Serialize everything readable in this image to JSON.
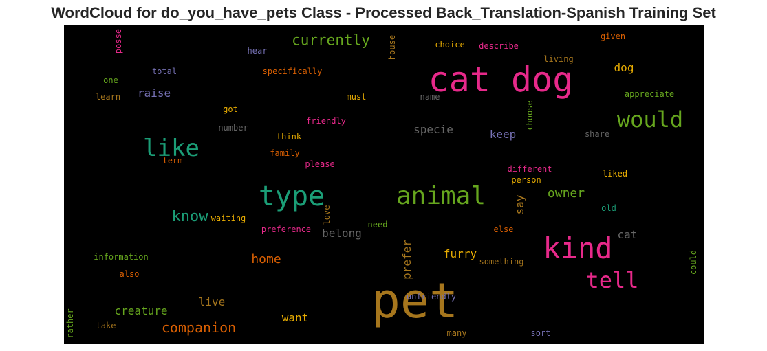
{
  "title": "WordCloud for do_you_have_pets Class - Processed Back_Translation-Spanish Training Set",
  "chart_data": {
    "type": "wordcloud",
    "background": "#000000",
    "colormap": "Dark2",
    "words": [
      {
        "text": "pet",
        "color": "#a6761d"
      },
      {
        "text": "cat dog",
        "color": "#e7298a"
      },
      {
        "text": "kind",
        "color": "#e7298a"
      },
      {
        "text": "animal",
        "color": "#66a61e"
      },
      {
        "text": "type",
        "color": "#1b9e77"
      },
      {
        "text": "would",
        "color": "#66a61e"
      },
      {
        "text": "like",
        "color": "#1b9e77"
      },
      {
        "text": "tell",
        "color": "#e7298a"
      },
      {
        "text": "currently",
        "color": "#66a61e"
      },
      {
        "text": "companion",
        "color": "#d95f02"
      },
      {
        "text": "know",
        "color": "#1b9e77"
      },
      {
        "text": "owner",
        "color": "#66a61e"
      },
      {
        "text": "home",
        "color": "#d95f02"
      },
      {
        "text": "creature",
        "color": "#66a61e"
      },
      {
        "text": "want",
        "color": "#e6ab02"
      },
      {
        "text": "furry",
        "color": "#e6ab02"
      },
      {
        "text": "belong",
        "color": "#666666"
      },
      {
        "text": "specie",
        "color": "#666666"
      },
      {
        "text": "live",
        "color": "#a6761d"
      },
      {
        "text": "cat",
        "color": "#666666"
      },
      {
        "text": "raise",
        "color": "#7570b3"
      },
      {
        "text": "keep",
        "color": "#7570b3"
      },
      {
        "text": "dog",
        "color": "#e6ab02"
      },
      {
        "text": "prefer",
        "color": "#a6761d"
      },
      {
        "text": "say",
        "color": "#a6761d"
      },
      {
        "text": "specifically",
        "color": "#d95f02"
      },
      {
        "text": "choice",
        "color": "#e6ab02"
      },
      {
        "text": "describe",
        "color": "#e7298a"
      },
      {
        "text": "given",
        "color": "#d95f02"
      },
      {
        "text": "hear",
        "color": "#7570b3"
      },
      {
        "text": "total",
        "color": "#7570b3"
      },
      {
        "text": "one",
        "color": "#66a61e"
      },
      {
        "text": "learn",
        "color": "#a6761d"
      },
      {
        "text": "must",
        "color": "#e6ab02"
      },
      {
        "text": "name",
        "color": "#666666"
      },
      {
        "text": "living",
        "color": "#a6761d"
      },
      {
        "text": "appreciate",
        "color": "#66a61e"
      },
      {
        "text": "got",
        "color": "#e6ab02"
      },
      {
        "text": "number",
        "color": "#666666"
      },
      {
        "text": "friendly",
        "color": "#e7298a"
      },
      {
        "text": "think",
        "color": "#e6ab02"
      },
      {
        "text": "share",
        "color": "#666666"
      },
      {
        "text": "family",
        "color": "#d95f02"
      },
      {
        "text": "term",
        "color": "#d95f02"
      },
      {
        "text": "please",
        "color": "#e7298a"
      },
      {
        "text": "different",
        "color": "#e7298a"
      },
      {
        "text": "liked",
        "color": "#e6ab02"
      },
      {
        "text": "person",
        "color": "#e6ab02"
      },
      {
        "text": "waiting",
        "color": "#e6ab02"
      },
      {
        "text": "old",
        "color": "#1b9e77"
      },
      {
        "text": "preference",
        "color": "#e7298a"
      },
      {
        "text": "need",
        "color": "#66a61e"
      },
      {
        "text": "else",
        "color": "#d95f02"
      },
      {
        "text": "information",
        "color": "#66a61e"
      },
      {
        "text": "something",
        "color": "#a6761d"
      },
      {
        "text": "also",
        "color": "#d95f02"
      },
      {
        "text": "unfriendly",
        "color": "#7570b3"
      },
      {
        "text": "take",
        "color": "#a6761d"
      },
      {
        "text": "many",
        "color": "#a6761d"
      },
      {
        "text": "sort",
        "color": "#7570b3"
      },
      {
        "text": "posse",
        "color": "#e7298a"
      },
      {
        "text": "house",
        "color": "#a6761d"
      },
      {
        "text": "choose",
        "color": "#66a61e"
      },
      {
        "text": "love",
        "color": "#a6761d"
      },
      {
        "text": "could",
        "color": "#66a61e"
      },
      {
        "text": "rather",
        "color": "#66a61e"
      }
    ]
  }
}
